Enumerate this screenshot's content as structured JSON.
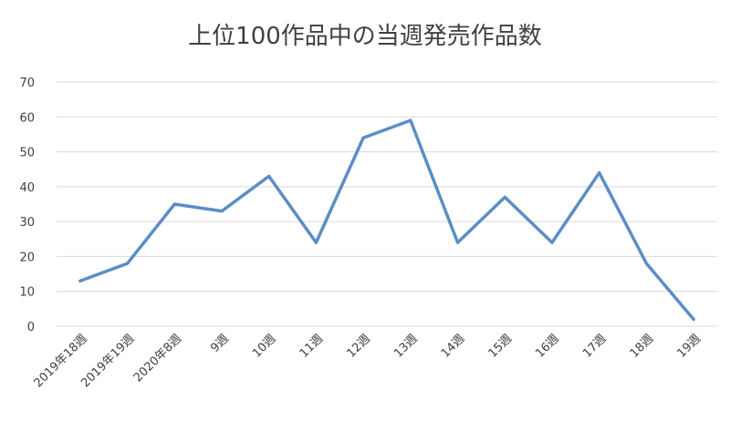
{
  "chart_data": {
    "type": "line",
    "title": "上位100作品中の当週発売作品数",
    "xlabel": "",
    "ylabel": "",
    "categories": [
      "2019年18週",
      "2019年19週",
      "2020年8週",
      "9週",
      "10週",
      "11週",
      "12週",
      "13週",
      "14週",
      "15週",
      "16週",
      "17週",
      "18週",
      "19週"
    ],
    "series": [
      {
        "values": [
          13,
          18,
          35,
          33,
          43,
          24,
          54,
          59,
          24,
          37,
          24,
          44,
          18,
          2
        ]
      }
    ],
    "ylim": [
      0,
      70
    ],
    "yticks": [
      "0",
      "10",
      "20",
      "30",
      "40",
      "50",
      "60",
      "70"
    ],
    "grid": true,
    "legend": "none",
    "line_color": "#5b8ec6"
  }
}
